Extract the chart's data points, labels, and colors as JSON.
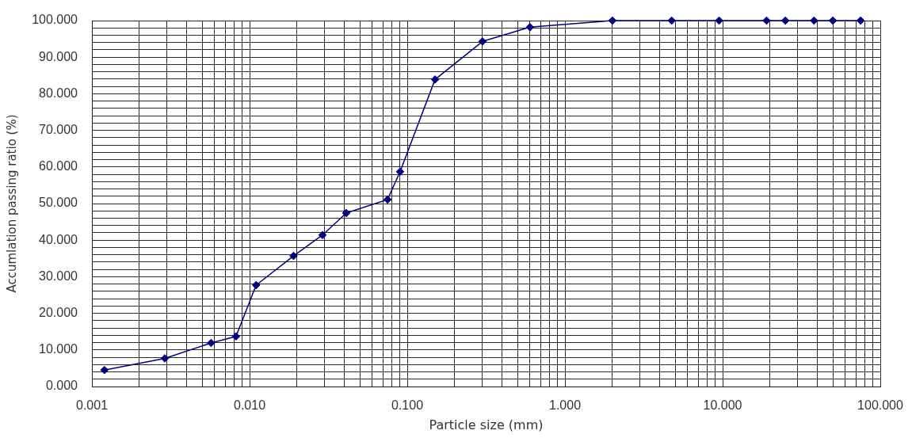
{
  "chart_data": {
    "type": "line",
    "xlabel": "Particle size (mm)",
    "ylabel": "Accumlation passing ratio (%)",
    "x": [
      0.0012,
      0.0029,
      0.0057,
      0.0082,
      0.011,
      0.019,
      0.029,
      0.041,
      0.075,
      0.09,
      0.15,
      0.3,
      0.6,
      2.0,
      4.75,
      9.5,
      19,
      25,
      38,
      50,
      75
    ],
    "series": [
      {
        "color": "#000080",
        "values": [
          4.5,
          7.7,
          11.9,
          13.7,
          27.7,
          35.7,
          41.4,
          47.4,
          51.1,
          58.7,
          83.9,
          94.3,
          98.2,
          100,
          100,
          100,
          100,
          100,
          100,
          100,
          100
        ]
      }
    ],
    "log": "x",
    "xlim": [
      0.001,
      100
    ],
    "ylim": [
      0,
      100
    ],
    "xticks": [
      {
        "value": 0.001,
        "label": "0.001"
      },
      {
        "value": 0.002,
        "label": null
      },
      {
        "value": 0.003,
        "label": null
      },
      {
        "value": 0.004,
        "label": null
      },
      {
        "value": 0.005,
        "label": null
      },
      {
        "value": 0.006,
        "label": null
      },
      {
        "value": 0.007,
        "label": null
      },
      {
        "value": 0.008,
        "label": null
      },
      {
        "value": 0.009,
        "label": null
      },
      {
        "value": 0.01,
        "label": "0.010"
      },
      {
        "value": 0.02,
        "label": null
      },
      {
        "value": 0.03,
        "label": null
      },
      {
        "value": 0.04,
        "label": null
      },
      {
        "value": 0.05,
        "label": null
      },
      {
        "value": 0.06,
        "label": null
      },
      {
        "value": 0.07,
        "label": null
      },
      {
        "value": 0.08,
        "label": null
      },
      {
        "value": 0.09,
        "label": null
      },
      {
        "value": 0.1,
        "label": "0.100"
      },
      {
        "value": 0.2,
        "label": null
      },
      {
        "value": 0.3,
        "label": null
      },
      {
        "value": 0.4,
        "label": null
      },
      {
        "value": 0.5,
        "label": null
      },
      {
        "value": 0.6,
        "label": null
      },
      {
        "value": 0.7,
        "label": null
      },
      {
        "value": 0.8,
        "label": null
      },
      {
        "value": 0.9,
        "label": null
      },
      {
        "value": 1,
        "label": "1.000"
      },
      {
        "value": 2,
        "label": null
      },
      {
        "value": 3,
        "label": null
      },
      {
        "value": 4,
        "label": null
      },
      {
        "value": 5,
        "label": null
      },
      {
        "value": 6,
        "label": null
      },
      {
        "value": 7,
        "label": null
      },
      {
        "value": 8,
        "label": null
      },
      {
        "value": 9,
        "label": null
      },
      {
        "value": 10,
        "label": "10.000"
      },
      {
        "value": 20,
        "label": null
      },
      {
        "value": 30,
        "label": null
      },
      {
        "value": 40,
        "label": null
      },
      {
        "value": 50,
        "label": null
      },
      {
        "value": 60,
        "label": null
      },
      {
        "value": 70,
        "label": null
      },
      {
        "value": 80,
        "label": null
      },
      {
        "value": 90,
        "label": null
      },
      {
        "value": 100,
        "label": "100.000"
      }
    ],
    "yticks": [
      {
        "value": 0,
        "label": "0.000"
      },
      {
        "value": 2,
        "label": null
      },
      {
        "value": 4,
        "label": null
      },
      {
        "value": 6,
        "label": null
      },
      {
        "value": 8,
        "label": null
      },
      {
        "value": 10,
        "label": "10.000"
      },
      {
        "value": 12,
        "label": null
      },
      {
        "value": 14,
        "label": null
      },
      {
        "value": 16,
        "label": null
      },
      {
        "value": 18,
        "label": null
      },
      {
        "value": 20,
        "label": "20.000"
      },
      {
        "value": 22,
        "label": null
      },
      {
        "value": 24,
        "label": null
      },
      {
        "value": 26,
        "label": null
      },
      {
        "value": 28,
        "label": null
      },
      {
        "value": 30,
        "label": "30.000"
      },
      {
        "value": 32,
        "label": null
      },
      {
        "value": 34,
        "label": null
      },
      {
        "value": 36,
        "label": null
      },
      {
        "value": 38,
        "label": null
      },
      {
        "value": 40,
        "label": "40.000"
      },
      {
        "value": 42,
        "label": null
      },
      {
        "value": 44,
        "label": null
      },
      {
        "value": 46,
        "label": null
      },
      {
        "value": 48,
        "label": null
      },
      {
        "value": 50,
        "label": "50.000"
      },
      {
        "value": 52,
        "label": null
      },
      {
        "value": 54,
        "label": null
      },
      {
        "value": 56,
        "label": null
      },
      {
        "value": 58,
        "label": null
      },
      {
        "value": 60,
        "label": "60.000"
      },
      {
        "value": 62,
        "label": null
      },
      {
        "value": 64,
        "label": null
      },
      {
        "value": 66,
        "label": null
      },
      {
        "value": 68,
        "label": null
      },
      {
        "value": 70,
        "label": "70.000"
      },
      {
        "value": 72,
        "label": null
      },
      {
        "value": 74,
        "label": null
      },
      {
        "value": 76,
        "label": null
      },
      {
        "value": 78,
        "label": null
      },
      {
        "value": 80,
        "label": "80.000"
      },
      {
        "value": 82,
        "label": null
      },
      {
        "value": 84,
        "label": null
      },
      {
        "value": 86,
        "label": null
      },
      {
        "value": 88,
        "label": null
      },
      {
        "value": 90,
        "label": "90.000"
      },
      {
        "value": 92,
        "label": null
      },
      {
        "value": 94,
        "label": null
      },
      {
        "value": 96,
        "label": null
      },
      {
        "value": 98,
        "label": null
      },
      {
        "value": 100,
        "label": "100.000"
      }
    ],
    "grid": true,
    "marker": "diamond",
    "line_style": "solid"
  }
}
